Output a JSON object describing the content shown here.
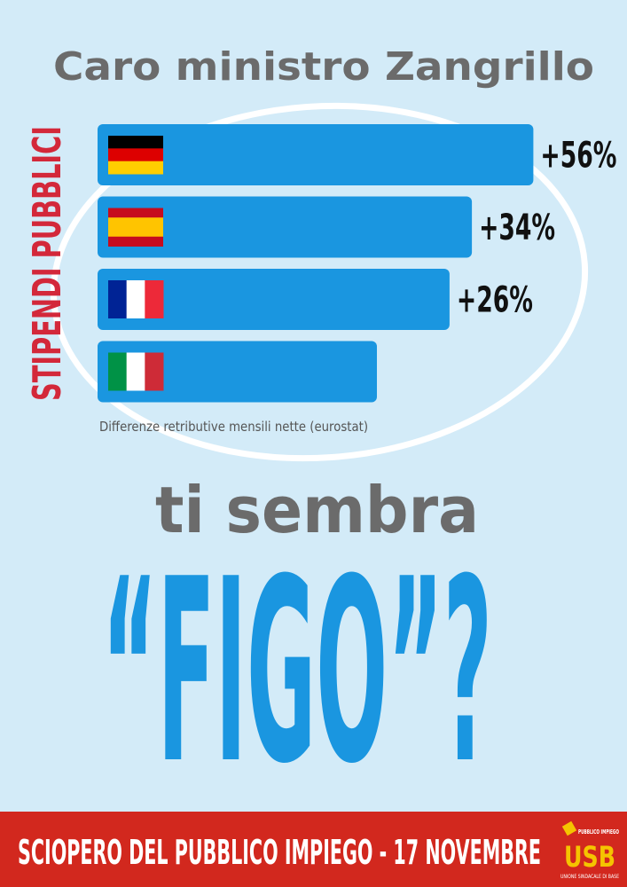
{
  "chart_data": {
    "type": "bar",
    "orientation": "horizontal",
    "title": "Caro ministro Zangrillo",
    "y_label": "STIPENDI PUBBLICI",
    "caption": "Differenze retributive mensili nette (eurostat)",
    "categories": [
      null,
      null,
      null,
      null
    ],
    "values": [
      56,
      34,
      26,
      0
    ],
    "value_labels": [
      "+56%",
      "+34%",
      "+26%",
      null
    ],
    "color": "#1a96e0",
    "xlim": [
      -100,
      60
    ]
  },
  "headline": {
    "line1": "ti sembra",
    "line2": "“FIGO”?"
  },
  "footer": {
    "text": "SCIOPERO DEL PUBBLICO IMPIEGO - 17 NOVEMBRE",
    "logo": {
      "top": "PUBBLICO IMPIEGO",
      "name": "USB",
      "subtitle": "UNIONE SINDACALE DI BASE"
    }
  }
}
